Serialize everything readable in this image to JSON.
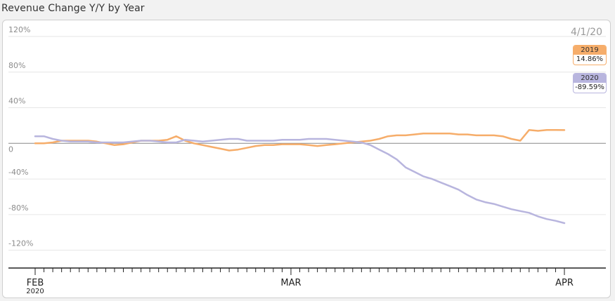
{
  "title": "Revenue Change Y/Y by Year",
  "hover_date": "4/1/20",
  "colors": {
    "2019": "#f6ad6a",
    "2020": "#b8b5de",
    "grid": "#e6e6e6",
    "zero": "#888888",
    "axis": "#222222"
  },
  "chart_data": {
    "type": "line",
    "title": "Revenue Change Y/Y by Year",
    "xlabel": "",
    "ylabel": "",
    "x_range": [
      "2020-02-01",
      "2020-04-01"
    ],
    "ylim": [
      -140,
      120
    ],
    "y_ticks": [
      120,
      80,
      40,
      0,
      -40,
      -80,
      -120
    ],
    "y_tick_labels": [
      "120%",
      "80%",
      "40%",
      "0",
      "-40%",
      "-80%",
      "-120%"
    ],
    "x_ticks": [
      {
        "date": "2020-02-01",
        "label": "FEB",
        "sub": "2020"
      },
      {
        "date": "2020-03-01",
        "label": "MAR",
        "sub": ""
      },
      {
        "date": "2020-04-01",
        "label": "APR",
        "sub": ""
      }
    ],
    "dates": [
      "2020-02-01",
      "2020-02-02",
      "2020-02-03",
      "2020-02-04",
      "2020-02-05",
      "2020-02-06",
      "2020-02-07",
      "2020-02-08",
      "2020-02-09",
      "2020-02-10",
      "2020-02-11",
      "2020-02-12",
      "2020-02-13",
      "2020-02-14",
      "2020-02-15",
      "2020-02-16",
      "2020-02-17",
      "2020-02-18",
      "2020-02-19",
      "2020-02-20",
      "2020-02-21",
      "2020-02-22",
      "2020-02-23",
      "2020-02-24",
      "2020-02-25",
      "2020-02-26",
      "2020-02-27",
      "2020-02-28",
      "2020-02-29",
      "2020-03-01",
      "2020-03-02",
      "2020-03-03",
      "2020-03-04",
      "2020-03-05",
      "2020-03-06",
      "2020-03-07",
      "2020-03-08",
      "2020-03-09",
      "2020-03-10",
      "2020-03-11",
      "2020-03-12",
      "2020-03-13",
      "2020-03-14",
      "2020-03-15",
      "2020-03-16",
      "2020-03-17",
      "2020-03-18",
      "2020-03-19",
      "2020-03-20",
      "2020-03-21",
      "2020-03-22",
      "2020-03-23",
      "2020-03-24",
      "2020-03-25",
      "2020-03-26",
      "2020-03-27",
      "2020-03-28",
      "2020-03-29",
      "2020-03-30",
      "2020-03-31",
      "2020-04-01"
    ],
    "series": [
      {
        "name": "2019",
        "values": [
          0,
          0,
          1,
          3,
          3,
          3,
          3,
          2,
          0,
          -2,
          -1,
          1,
          3,
          3,
          3,
          4,
          8,
          3,
          0,
          -2,
          -4,
          -6,
          -8,
          -7,
          -5,
          -3,
          -2,
          -2,
          -1,
          -1,
          -1,
          -2,
          -3,
          -2,
          -1,
          0,
          1,
          2,
          3,
          5,
          8,
          9,
          9,
          10,
          11,
          11,
          11,
          11,
          10,
          10,
          9,
          9,
          9,
          8,
          5,
          3,
          15,
          14,
          15,
          15,
          14.86
        ]
      },
      {
        "name": "2020",
        "values": [
          8,
          8,
          5,
          3,
          2,
          2,
          2,
          1,
          1,
          1,
          1,
          2,
          3,
          3,
          2,
          1,
          1,
          4,
          3,
          2,
          3,
          4,
          5,
          5,
          3,
          3,
          3,
          3,
          4,
          4,
          4,
          5,
          5,
          5,
          4,
          3,
          2,
          1,
          -2,
          -7,
          -12,
          -18,
          -27,
          -32,
          -37,
          -40,
          -44,
          -48,
          -52,
          -58,
          -63,
          -66,
          -68,
          -71,
          -74,
          -76,
          -78,
          -82,
          -85,
          -87,
          -89.59
        ]
      }
    ],
    "tooltip": {
      "date": "4/1/20",
      "entries": [
        {
          "name": "2019",
          "value": "14.86%"
        },
        {
          "name": "2020",
          "value": "-89.59%"
        }
      ]
    }
  }
}
